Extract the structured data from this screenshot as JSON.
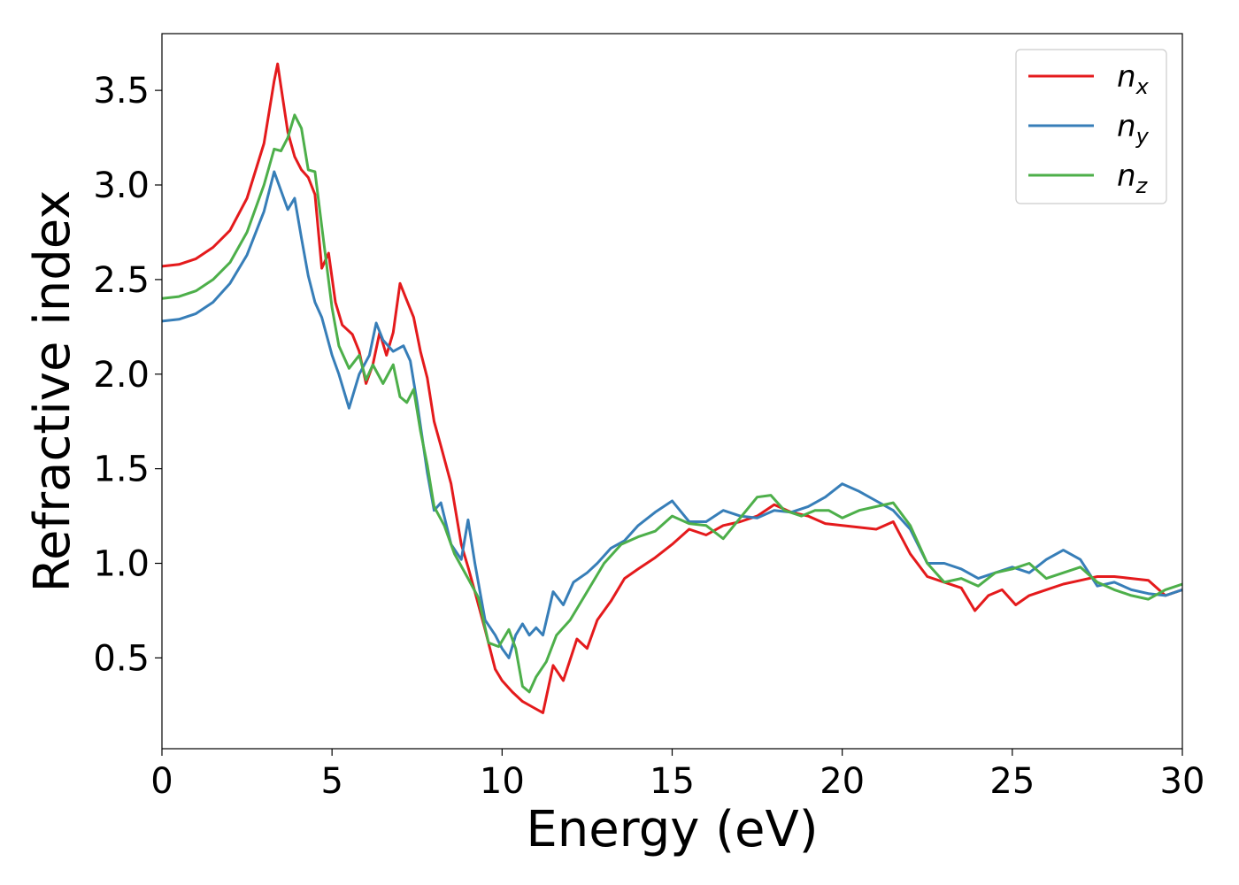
{
  "chart_data": {
    "type": "line",
    "xlabel": "Energy (eV)",
    "ylabel": "Refractive index",
    "xlim": [
      0,
      30
    ],
    "ylim": [
      0.02,
      3.8
    ],
    "xticks": [
      0,
      5,
      10,
      15,
      20,
      25,
      30
    ],
    "yticks": [
      0.5,
      1.0,
      1.5,
      2.0,
      2.5,
      3.0,
      3.5
    ],
    "xtick_labels": [
      "0",
      "5",
      "10",
      "15",
      "20",
      "25",
      "30"
    ],
    "ytick_labels": [
      "0.5",
      "1.0",
      "1.5",
      "2.0",
      "2.5",
      "3.0",
      "3.5"
    ],
    "grid": false,
    "legend_position": "top-right",
    "series": [
      {
        "name": "n",
        "subscript": "x",
        "color": "#e41a1c",
        "points": [
          [
            0,
            2.57
          ],
          [
            0.5,
            2.58
          ],
          [
            1,
            2.61
          ],
          [
            1.5,
            2.67
          ],
          [
            2,
            2.76
          ],
          [
            2.5,
            2.93
          ],
          [
            3,
            3.22
          ],
          [
            3.3,
            3.55
          ],
          [
            3.4,
            3.64
          ],
          [
            3.5,
            3.52
          ],
          [
            3.7,
            3.28
          ],
          [
            3.9,
            3.15
          ],
          [
            4.1,
            3.08
          ],
          [
            4.3,
            3.04
          ],
          [
            4.5,
            2.95
          ],
          [
            4.7,
            2.56
          ],
          [
            4.9,
            2.64
          ],
          [
            5.1,
            2.38
          ],
          [
            5.3,
            2.26
          ],
          [
            5.6,
            2.21
          ],
          [
            5.8,
            2.12
          ],
          [
            6.0,
            1.95
          ],
          [
            6.2,
            2.05
          ],
          [
            6.4,
            2.22
          ],
          [
            6.6,
            2.1
          ],
          [
            6.8,
            2.22
          ],
          [
            7.0,
            2.48
          ],
          [
            7.2,
            2.39
          ],
          [
            7.4,
            2.3
          ],
          [
            7.6,
            2.12
          ],
          [
            7.8,
            1.98
          ],
          [
            8.0,
            1.75
          ],
          [
            8.2,
            1.62
          ],
          [
            8.5,
            1.42
          ],
          [
            8.8,
            1.1
          ],
          [
            9.0,
            0.98
          ],
          [
            9.2,
            0.85
          ],
          [
            9.5,
            0.65
          ],
          [
            9.8,
            0.44
          ],
          [
            10.0,
            0.38
          ],
          [
            10.3,
            0.32
          ],
          [
            10.6,
            0.27
          ],
          [
            10.9,
            0.24
          ],
          [
            11.2,
            0.21
          ],
          [
            11.5,
            0.46
          ],
          [
            11.8,
            0.38
          ],
          [
            12.2,
            0.6
          ],
          [
            12.5,
            0.55
          ],
          [
            12.8,
            0.7
          ],
          [
            13.2,
            0.8
          ],
          [
            13.6,
            0.92
          ],
          [
            14.0,
            0.97
          ],
          [
            14.5,
            1.03
          ],
          [
            15.0,
            1.1
          ],
          [
            15.5,
            1.18
          ],
          [
            16.0,
            1.15
          ],
          [
            16.5,
            1.2
          ],
          [
            17.0,
            1.22
          ],
          [
            17.5,
            1.25
          ],
          [
            18.0,
            1.31
          ],
          [
            18.5,
            1.27
          ],
          [
            19.0,
            1.25
          ],
          [
            19.5,
            1.21
          ],
          [
            20.0,
            1.2
          ],
          [
            20.5,
            1.19
          ],
          [
            21.0,
            1.18
          ],
          [
            21.5,
            1.22
          ],
          [
            22.0,
            1.05
          ],
          [
            22.5,
            0.93
          ],
          [
            23.0,
            0.9
          ],
          [
            23.5,
            0.87
          ],
          [
            23.9,
            0.75
          ],
          [
            24.3,
            0.83
          ],
          [
            24.7,
            0.86
          ],
          [
            25.1,
            0.78
          ],
          [
            25.5,
            0.83
          ],
          [
            26.0,
            0.86
          ],
          [
            26.5,
            0.89
          ],
          [
            27.0,
            0.91
          ],
          [
            27.5,
            0.93
          ],
          [
            28.0,
            0.93
          ],
          [
            28.5,
            0.92
          ],
          [
            29.0,
            0.91
          ],
          [
            29.5,
            0.83
          ],
          [
            30.0,
            0.86
          ]
        ]
      },
      {
        "name": "n",
        "subscript": "y",
        "color": "#377eb8",
        "points": [
          [
            0,
            2.28
          ],
          [
            0.5,
            2.29
          ],
          [
            1,
            2.32
          ],
          [
            1.5,
            2.38
          ],
          [
            2,
            2.48
          ],
          [
            2.5,
            2.63
          ],
          [
            3,
            2.86
          ],
          [
            3.3,
            3.07
          ],
          [
            3.5,
            2.97
          ],
          [
            3.7,
            2.87
          ],
          [
            3.9,
            2.93
          ],
          [
            4.1,
            2.72
          ],
          [
            4.3,
            2.52
          ],
          [
            4.5,
            2.38
          ],
          [
            4.7,
            2.3
          ],
          [
            5.0,
            2.1
          ],
          [
            5.2,
            2.0
          ],
          [
            5.5,
            1.82
          ],
          [
            5.8,
            2.0
          ],
          [
            6.1,
            2.1
          ],
          [
            6.3,
            2.27
          ],
          [
            6.5,
            2.18
          ],
          [
            6.8,
            2.12
          ],
          [
            7.1,
            2.15
          ],
          [
            7.3,
            2.07
          ],
          [
            7.5,
            1.85
          ],
          [
            7.8,
            1.48
          ],
          [
            8.0,
            1.28
          ],
          [
            8.2,
            1.32
          ],
          [
            8.5,
            1.1
          ],
          [
            8.8,
            1.02
          ],
          [
            9.0,
            1.23
          ],
          [
            9.2,
            1.0
          ],
          [
            9.5,
            0.7
          ],
          [
            9.8,
            0.62
          ],
          [
            10.0,
            0.55
          ],
          [
            10.2,
            0.5
          ],
          [
            10.4,
            0.62
          ],
          [
            10.6,
            0.68
          ],
          [
            10.8,
            0.62
          ],
          [
            11.0,
            0.66
          ],
          [
            11.2,
            0.62
          ],
          [
            11.5,
            0.85
          ],
          [
            11.8,
            0.78
          ],
          [
            12.1,
            0.9
          ],
          [
            12.5,
            0.95
          ],
          [
            12.8,
            1.0
          ],
          [
            13.2,
            1.08
          ],
          [
            13.6,
            1.12
          ],
          [
            14.0,
            1.2
          ],
          [
            14.5,
            1.27
          ],
          [
            15.0,
            1.33
          ],
          [
            15.5,
            1.22
          ],
          [
            16.0,
            1.22
          ],
          [
            16.5,
            1.28
          ],
          [
            17.0,
            1.25
          ],
          [
            17.5,
            1.24
          ],
          [
            18.0,
            1.28
          ],
          [
            18.5,
            1.27
          ],
          [
            19.0,
            1.3
          ],
          [
            19.5,
            1.35
          ],
          [
            20.0,
            1.42
          ],
          [
            20.5,
            1.38
          ],
          [
            21.0,
            1.33
          ],
          [
            21.5,
            1.28
          ],
          [
            22.0,
            1.18
          ],
          [
            22.5,
            1.0
          ],
          [
            23.0,
            1.0
          ],
          [
            23.5,
            0.97
          ],
          [
            24.0,
            0.92
          ],
          [
            24.5,
            0.95
          ],
          [
            25.0,
            0.98
          ],
          [
            25.5,
            0.95
          ],
          [
            26.0,
            1.02
          ],
          [
            26.5,
            1.07
          ],
          [
            27.0,
            1.02
          ],
          [
            27.5,
            0.88
          ],
          [
            28.0,
            0.9
          ],
          [
            28.5,
            0.86
          ],
          [
            29.0,
            0.84
          ],
          [
            29.5,
            0.83
          ],
          [
            30.0,
            0.86
          ]
        ]
      },
      {
        "name": "n",
        "subscript": "z",
        "color": "#4daf4a",
        "points": [
          [
            0,
            2.4
          ],
          [
            0.5,
            2.41
          ],
          [
            1,
            2.44
          ],
          [
            1.5,
            2.5
          ],
          [
            2,
            2.59
          ],
          [
            2.5,
            2.75
          ],
          [
            3,
            3.0
          ],
          [
            3.3,
            3.19
          ],
          [
            3.5,
            3.18
          ],
          [
            3.7,
            3.25
          ],
          [
            3.9,
            3.37
          ],
          [
            4.1,
            3.3
          ],
          [
            4.3,
            3.08
          ],
          [
            4.5,
            3.07
          ],
          [
            4.7,
            2.78
          ],
          [
            5.0,
            2.35
          ],
          [
            5.2,
            2.15
          ],
          [
            5.5,
            2.03
          ],
          [
            5.8,
            2.1
          ],
          [
            6.0,
            1.97
          ],
          [
            6.2,
            2.05
          ],
          [
            6.5,
            1.95
          ],
          [
            6.8,
            2.05
          ],
          [
            7.0,
            1.88
          ],
          [
            7.2,
            1.85
          ],
          [
            7.4,
            1.92
          ],
          [
            7.6,
            1.7
          ],
          [
            7.8,
            1.52
          ],
          [
            8.0,
            1.3
          ],
          [
            8.3,
            1.2
          ],
          [
            8.6,
            1.05
          ],
          [
            9.0,
            0.92
          ],
          [
            9.3,
            0.82
          ],
          [
            9.6,
            0.58
          ],
          [
            9.9,
            0.56
          ],
          [
            10.2,
            0.65
          ],
          [
            10.4,
            0.55
          ],
          [
            10.6,
            0.35
          ],
          [
            10.8,
            0.32
          ],
          [
            11.0,
            0.4
          ],
          [
            11.3,
            0.48
          ],
          [
            11.6,
            0.62
          ],
          [
            12.0,
            0.7
          ],
          [
            12.5,
            0.85
          ],
          [
            13.0,
            1.0
          ],
          [
            13.5,
            1.1
          ],
          [
            14.0,
            1.14
          ],
          [
            14.5,
            1.17
          ],
          [
            15.0,
            1.25
          ],
          [
            15.5,
            1.21
          ],
          [
            16.0,
            1.2
          ],
          [
            16.5,
            1.13
          ],
          [
            17.0,
            1.24
          ],
          [
            17.5,
            1.35
          ],
          [
            17.9,
            1.36
          ],
          [
            18.3,
            1.28
          ],
          [
            18.8,
            1.25
          ],
          [
            19.2,
            1.28
          ],
          [
            19.6,
            1.28
          ],
          [
            20.0,
            1.24
          ],
          [
            20.5,
            1.28
          ],
          [
            21.0,
            1.3
          ],
          [
            21.5,
            1.32
          ],
          [
            22.0,
            1.2
          ],
          [
            22.5,
            1.0
          ],
          [
            23.0,
            0.9
          ],
          [
            23.5,
            0.92
          ],
          [
            24.0,
            0.88
          ],
          [
            24.5,
            0.95
          ],
          [
            25.0,
            0.97
          ],
          [
            25.5,
            1.0
          ],
          [
            26.0,
            0.92
          ],
          [
            26.5,
            0.95
          ],
          [
            27.0,
            0.98
          ],
          [
            27.5,
            0.9
          ],
          [
            28.0,
            0.86
          ],
          [
            28.5,
            0.83
          ],
          [
            29.0,
            0.81
          ],
          [
            29.5,
            0.86
          ],
          [
            30.0,
            0.89
          ]
        ]
      }
    ]
  }
}
